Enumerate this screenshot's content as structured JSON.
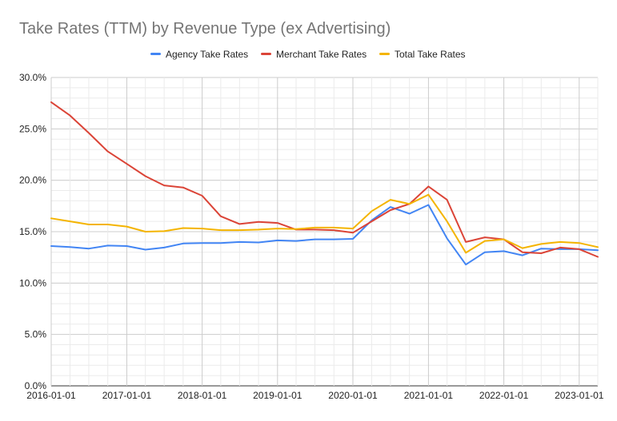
{
  "chart_data": {
    "type": "line",
    "title": "Take Rates (TTM) by Revenue Type (ex Advertising)",
    "xlabel": "",
    "ylabel": "",
    "ylim": [
      0,
      30
    ],
    "y_ticks": [
      "0.0%",
      "5.0%",
      "10.0%",
      "15.0%",
      "20.0%",
      "25.0%",
      "30.0%"
    ],
    "x_ticks": [
      "2016-01-01",
      "2017-01-01",
      "2018-01-01",
      "2019-01-01",
      "2020-01-01",
      "2021-01-01",
      "2022-01-01",
      "2023-01-01"
    ],
    "legend_position": "top",
    "grid": true,
    "x": [
      "2016-01-01",
      "2016-04-01",
      "2016-07-01",
      "2016-10-01",
      "2017-01-01",
      "2017-04-01",
      "2017-07-01",
      "2017-10-01",
      "2018-01-01",
      "2018-04-01",
      "2018-07-01",
      "2018-10-01",
      "2019-01-01",
      "2019-04-01",
      "2019-07-01",
      "2019-10-01",
      "2020-01-01",
      "2020-04-01",
      "2020-07-01",
      "2020-10-01",
      "2021-01-01",
      "2021-04-01",
      "2021-07-01",
      "2021-10-01",
      "2022-01-01",
      "2022-04-01",
      "2022-07-01",
      "2022-10-01",
      "2023-01-01",
      "2023-04-01"
    ],
    "series": [
      {
        "name": "Agency Take Rates",
        "color": "#4285f4",
        "values": [
          13.6,
          13.5,
          13.35,
          13.65,
          13.6,
          13.25,
          13.45,
          13.85,
          13.9,
          13.9,
          14.0,
          13.95,
          14.15,
          14.1,
          14.25,
          14.25,
          14.3,
          16.1,
          17.4,
          16.75,
          17.6,
          14.35,
          11.8,
          13.0,
          13.1,
          12.7,
          13.35,
          13.3,
          13.3,
          13.2
        ]
      },
      {
        "name": "Merchant Take Rates",
        "color": "#db4437",
        "values": [
          27.6,
          26.3,
          24.6,
          22.8,
          21.6,
          20.4,
          19.5,
          19.3,
          18.5,
          16.5,
          15.75,
          15.95,
          15.85,
          15.2,
          15.2,
          15.15,
          14.9,
          16.0,
          17.1,
          17.7,
          19.4,
          18.1,
          14.0,
          14.45,
          14.25,
          13.0,
          12.9,
          13.45,
          13.3,
          12.55
        ]
      },
      {
        "name": "Total Take Rates",
        "color": "#f4b400",
        "values": [
          16.3,
          16.0,
          15.7,
          15.7,
          15.5,
          15.0,
          15.05,
          15.35,
          15.3,
          15.15,
          15.15,
          15.2,
          15.3,
          15.25,
          15.4,
          15.4,
          15.3,
          17.0,
          18.1,
          17.7,
          18.6,
          16.0,
          12.95,
          14.1,
          14.25,
          13.4,
          13.8,
          14.0,
          13.9,
          13.5
        ]
      }
    ]
  }
}
